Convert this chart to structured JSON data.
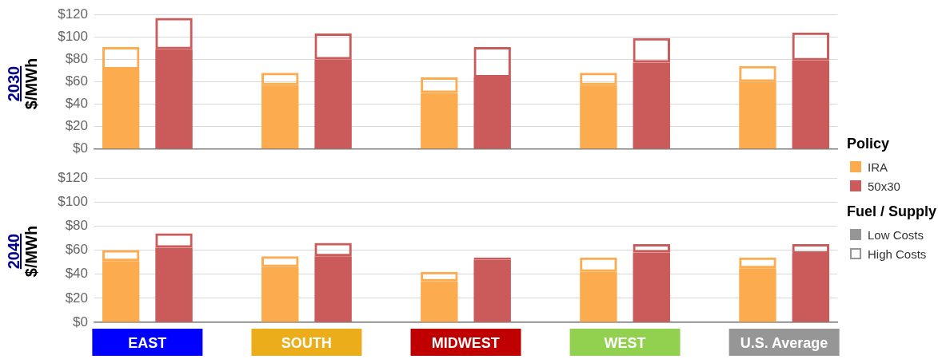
{
  "chart_data": [
    {
      "type": "bar",
      "title": "2030",
      "ylabel": "$/MWh",
      "categories": [
        null,
        null,
        null,
        null,
        null,
        null,
        null,
        null,
        null,
        null,
        null,
        null,
        null,
        null
      ],
      "stacked": true,
      "tick_labels": "y",
      "grid": "y",
      "annotations": [
        "Policy",
        "IRA",
        "50x30",
        "Fuel / Supply",
        "Low Costs",
        "High Costs"
      ],
      "ylim": [
        0,
        120
      ],
      "yticks": [
        {
          "value": 0,
          "label": "$0"
        },
        {
          "value": 20,
          "label": "$20"
        },
        {
          "value": 40,
          "label": "$40"
        },
        {
          "value": 60,
          "label": "$60"
        },
        {
          "value": 80,
          "label": "$80"
        },
        {
          "value": 100,
          "label": "$100"
        },
        {
          "value": 120,
          "label": "$120"
        }
      ],
      "series": [
        {
          "colors": [
            "#fdab4f",
            "#cb5b5b",
            null,
            "#fdab4f",
            "#cb5b5b",
            null,
            "#fdab4f",
            "#cb5b5b",
            null,
            "#fdab4f",
            "#cb5b5b",
            null,
            "#fdab4f",
            "#cb5b5b"
          ],
          "values": [
            71,
            89,
            null,
            57,
            80,
            null,
            50,
            64,
            null,
            57,
            77,
            null,
            60,
            79
          ]
        },
        {
          "colors": [
            "#fdab4f",
            "#cb5b5b",
            null,
            "#fdab4f",
            "#cb5b5b",
            null,
            "#fdab4f",
            "#cb5b5b",
            null,
            "#fdab4f",
            "#cb5b5b",
            null,
            "#fdab4f",
            "#cb5b5b"
          ],
          "values": [
            20,
            28,
            null,
            11,
            23,
            null,
            14,
            27,
            null,
            11,
            22,
            null,
            14,
            25
          ]
        }
      ]
    },
    {
      "type": "bar",
      "title": "2040",
      "ylabel": "$/MWh",
      "categories": [
        "EAST",
        null,
        null,
        "SOUTH",
        null,
        null,
        "MIDWEST",
        null,
        null,
        "WEST",
        null,
        null,
        "U.S. Average",
        null
      ],
      "stacked": true,
      "grid": "y",
      "ylim": [
        0,
        120
      ],
      "yticks": [
        {
          "value": 0,
          "label": "$0"
        },
        {
          "value": 20,
          "label": "$20"
        },
        {
          "value": 40,
          "label": "$40"
        },
        {
          "value": 60,
          "label": "$60"
        },
        {
          "value": 80,
          "label": "$80"
        },
        {
          "value": 100,
          "label": "$100"
        },
        {
          "value": 120,
          "label": "$120"
        }
      ],
      "series": [
        {
          "colors": [
            "#fdab4f",
            "#cb5b5b",
            null,
            "#fdab4f",
            "#cb5b5b",
            null,
            "#fdab4f",
            "#cb5b5b",
            null,
            "#fdab4f",
            "#cb5b5b",
            null,
            "#fdab4f",
            "#cb5b5b"
          ],
          "values": [
            51,
            62,
            null,
            46,
            55,
            null,
            34,
            52,
            null,
            42,
            58,
            null,
            45,
            57
          ]
        },
        {
          "colors": [
            "#fdab4f",
            "#cb5b5b",
            null,
            "#fdab4f",
            "#cb5b5b",
            null,
            "#fdab4f",
            "#cb5b5b",
            null,
            "#fdab4f",
            "#cb5b5b",
            null,
            "#fdab4f",
            "#cb5b5b"
          ],
          "values": [
            9,
            12,
            null,
            9,
            11,
            null,
            8,
            2,
            null,
            12,
            7,
            null,
            9,
            8
          ]
        }
      ]
    }
  ]
}
